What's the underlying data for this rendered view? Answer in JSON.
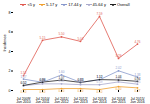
{
  "chart_data": {
    "type": "line",
    "ylabel": "Incidence",
    "categories": [
      "Jul 2009/\nJun 2010",
      "Jul 2010/\nJun 2011",
      "Jul 2011/\nJun 2012",
      "Jul 2012/\nJun 2013",
      "Jul 2013/\nJun 2014",
      "Jul 2014/\nJun 2015",
      "Jul 2015/\nJun 2016"
    ],
    "series": [
      {
        "name": "<5 y",
        "color": "#e05a50",
        "values": [
          1.52,
          5.15,
          5.5,
          5.04,
          7.59,
          3.29,
          4.76
        ],
        "value_labels": [
          "1.52",
          "5.15",
          "5.50",
          "5.04",
          "7.59",
          "3.29",
          "4.76"
        ]
      },
      {
        "name": "5-17 y",
        "color": "#f0a030",
        "values": [
          0.1,
          0.1,
          0.2,
          0.2,
          0.1,
          0.4,
          0.27
        ],
        "value_labels": [
          "0.10",
          "0.10",
          "0.20",
          "0.20",
          "0.10",
          "0.40",
          "0.27"
        ]
      },
      {
        "name": "17-44 y",
        "color": "#8899cc",
        "values": [
          1.17,
          0.84,
          1.6,
          0.83,
          1.1,
          2.02,
          1.38
        ],
        "value_labels": [
          "1.17",
          "0.84",
          "1.60",
          "0.83",
          "1.10",
          "2.02",
          "1.38"
        ]
      },
      {
        "name": "45-64 y",
        "color": "#aaaacc",
        "values": [
          0.5,
          0.68,
          0.68,
          0.6,
          0.59,
          0.88,
          0.65
        ],
        "value_labels": [
          "0.50",
          "0.68",
          "0.68",
          "0.60",
          "0.59",
          "0.88",
          "0.65"
        ]
      },
      {
        "name": "Overall",
        "color": "#222222",
        "values": [
          0.52,
          0.86,
          1.07,
          0.83,
          1.12,
          1.08,
          0.94
        ],
        "value_labels": [
          "0.52",
          "0.86",
          "1.07",
          "0.83",
          "1.12",
          "1.08",
          "0.94"
        ]
      }
    ],
    "ylim": [
      0,
      8
    ],
    "yticks": [
      0,
      2,
      4,
      6,
      8
    ],
    "grid": false,
    "legend": "top",
    "data_labels": true,
    "marker": "circle",
    "line_style": "solid"
  }
}
